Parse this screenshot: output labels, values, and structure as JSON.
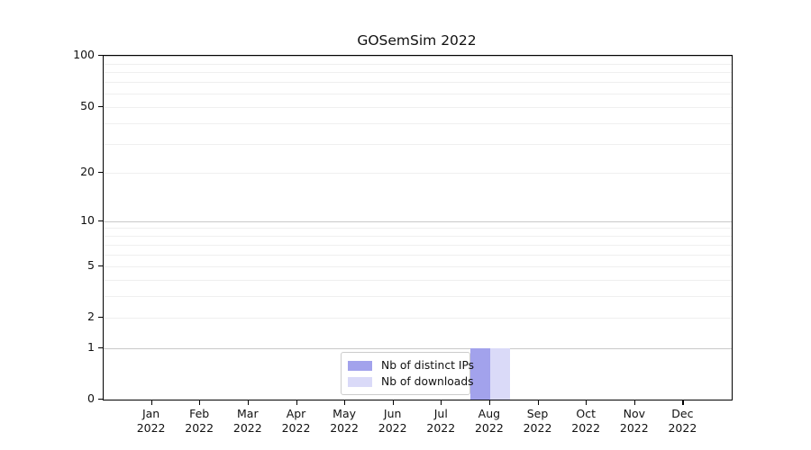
{
  "chart_data": {
    "type": "bar",
    "title": "GOSemSim 2022",
    "x_categories": [
      {
        "month": "Jan",
        "year": "2022"
      },
      {
        "month": "Feb",
        "year": "2022"
      },
      {
        "month": "Mar",
        "year": "2022"
      },
      {
        "month": "Apr",
        "year": "2022"
      },
      {
        "month": "May",
        "year": "2022"
      },
      {
        "month": "Jun",
        "year": "2022"
      },
      {
        "month": "Jul",
        "year": "2022"
      },
      {
        "month": "Aug",
        "year": "2022"
      },
      {
        "month": "Sep",
        "year": "2022"
      },
      {
        "month": "Oct",
        "year": "2022"
      },
      {
        "month": "Nov",
        "year": "2022"
      },
      {
        "month": "Dec",
        "year": "2022"
      }
    ],
    "series": [
      {
        "name": "Nb of distinct IPs",
        "color": "#a2a2ec",
        "values": [
          0,
          0,
          0,
          0,
          0,
          0,
          0,
          1,
          0,
          0,
          0,
          0
        ]
      },
      {
        "name": "Nb of downloads",
        "color": "#dadaf8",
        "values": [
          0,
          0,
          0,
          0,
          0,
          0,
          0,
          1,
          0,
          0,
          0,
          0
        ]
      }
    ],
    "y_scale": "log1p",
    "ylim": [
      0,
      100
    ],
    "y_ticks": [
      0,
      1,
      2,
      5,
      10,
      20,
      50,
      100
    ],
    "y_major_gridlines": [
      1,
      10,
      100
    ],
    "y_minor_gridlines": [
      2,
      3,
      4,
      5,
      6,
      7,
      8,
      9,
      20,
      30,
      40,
      50,
      60,
      70,
      80,
      90
    ],
    "grid": "horizontal",
    "legend_position": "lower-center-inside",
    "axis_color": "#000000",
    "background_color": "#ffffff"
  }
}
